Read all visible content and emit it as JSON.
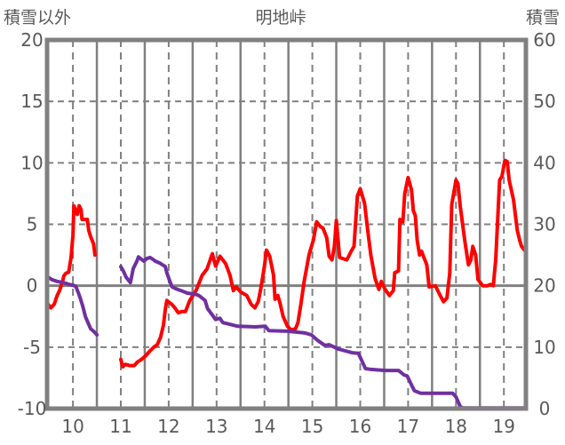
{
  "chart_data": {
    "type": "line",
    "title": "明地峠",
    "ylabel_left": "積雪以外",
    "ylabel_right": "積雪",
    "xlim": [
      9.46,
      19.46
    ],
    "ylim_left": [
      -10,
      20
    ],
    "ylim_right": [
      0,
      60
    ],
    "x_ticks": [
      "10",
      "11",
      "12",
      "13",
      "14",
      "15",
      "16",
      "17",
      "18",
      "19"
    ],
    "y_ticks_left": [
      "20",
      "15",
      "10",
      "5",
      "0",
      "-5",
      "-10"
    ],
    "y_ticks_right": [
      "60",
      "50",
      "40",
      "30",
      "20",
      "10",
      "0"
    ],
    "grid": true,
    "colors": {
      "temperature": "#ff0000",
      "snow": "#7030a0",
      "axis": "#808080",
      "text": "#595959"
    },
    "series": [
      {
        "name": "積雪以外",
        "axis": "left",
        "color": "#ff0000",
        "points": [
          [
            9.48,
            -1.5
          ],
          [
            9.54,
            -1.8
          ],
          [
            9.61,
            -1.5
          ],
          [
            9.67,
            -0.8
          ],
          [
            9.72,
            -0.4
          ],
          [
            9.78,
            0.3
          ],
          [
            9.81,
            0.8
          ],
          [
            9.85,
            1.0
          ],
          [
            9.91,
            1.1
          ],
          [
            9.96,
            2.3
          ],
          [
            10.0,
            4.1
          ],
          [
            10.02,
            6.5
          ],
          [
            10.06,
            6.1
          ],
          [
            10.09,
            5.8
          ],
          [
            10.13,
            6.5
          ],
          [
            10.17,
            6.2
          ],
          [
            10.19,
            5.4
          ],
          [
            10.3,
            5.4
          ],
          [
            10.33,
            4.5
          ],
          [
            10.37,
            4.0
          ],
          [
            10.43,
            3.4
          ],
          [
            10.46,
            2.5
          ],
          null,
          [
            11.0,
            -6.0
          ],
          [
            11.04,
            -6.6
          ],
          [
            11.09,
            -6.4
          ],
          [
            11.19,
            -6.5
          ],
          [
            11.28,
            -6.5
          ],
          [
            11.35,
            -6.2
          ],
          [
            11.43,
            -6.0
          ],
          [
            11.52,
            -5.7
          ],
          [
            11.61,
            -5.3
          ],
          [
            11.69,
            -5.0
          ],
          [
            11.76,
            -4.8
          ],
          [
            11.83,
            -4.2
          ],
          [
            11.89,
            -3.2
          ],
          [
            11.93,
            -1.9
          ],
          [
            11.96,
            -1.2
          ],
          [
            12.06,
            -1.5
          ],
          [
            12.13,
            -1.8
          ],
          [
            12.2,
            -2.2
          ],
          [
            12.28,
            -2.1
          ],
          [
            12.35,
            -2.1
          ],
          [
            12.44,
            -1.2
          ],
          [
            12.57,
            -0.4
          ],
          [
            12.7,
            0.85
          ],
          [
            12.8,
            1.36
          ],
          [
            12.91,
            2.6
          ],
          [
            12.98,
            1.6
          ],
          [
            13.07,
            2.4
          ],
          [
            13.19,
            1.8
          ],
          [
            13.28,
            0.85
          ],
          [
            13.35,
            -0.4
          ],
          [
            13.41,
            -0.1
          ],
          [
            13.5,
            -0.5
          ],
          [
            13.63,
            -0.8
          ],
          [
            13.72,
            -1.5
          ],
          [
            13.8,
            -1.8
          ],
          [
            13.87,
            -1.3
          ],
          [
            13.93,
            -0.1
          ],
          [
            14.0,
            1.6
          ],
          [
            14.04,
            2.9
          ],
          [
            14.11,
            2.4
          ],
          [
            14.19,
            0.85
          ],
          [
            14.22,
            -1.1
          ],
          [
            14.28,
            -0.8
          ],
          [
            14.33,
            -1.5
          ],
          [
            14.39,
            -2.5
          ],
          [
            14.48,
            -3.3
          ],
          [
            14.56,
            -3.6
          ],
          [
            14.65,
            -3.5
          ],
          [
            14.7,
            -3.0
          ],
          [
            14.76,
            -1.5
          ],
          [
            14.83,
            0.35
          ],
          [
            14.93,
            2.5
          ],
          [
            15.02,
            3.7
          ],
          [
            15.09,
            5.2
          ],
          [
            15.17,
            4.8
          ],
          [
            15.22,
            4.7
          ],
          [
            15.3,
            3.9
          ],
          [
            15.35,
            2.4
          ],
          [
            15.41,
            2.1
          ],
          [
            15.46,
            3.2
          ],
          [
            15.5,
            5.3
          ],
          [
            15.57,
            2.3
          ],
          [
            15.72,
            2.1
          ],
          [
            15.81,
            2.8
          ],
          [
            15.87,
            3.2
          ],
          [
            15.94,
            7.3
          ],
          [
            16.0,
            7.9
          ],
          [
            16.09,
            6.7
          ],
          [
            16.15,
            4.7
          ],
          [
            16.22,
            2.5
          ],
          [
            16.31,
            0.6
          ],
          [
            16.39,
            -0.3
          ],
          [
            16.44,
            0.35
          ],
          [
            16.52,
            -0.3
          ],
          [
            16.61,
            -0.8
          ],
          [
            16.69,
            -0.4
          ],
          [
            16.72,
            1.05
          ],
          [
            16.8,
            1.2
          ],
          [
            16.83,
            5.4
          ],
          [
            16.89,
            5.2
          ],
          [
            16.93,
            7.5
          ],
          [
            17.0,
            8.8
          ],
          [
            17.07,
            7.8
          ],
          [
            17.11,
            6.1
          ],
          [
            17.15,
            5.7
          ],
          [
            17.19,
            3.7
          ],
          [
            17.24,
            2.5
          ],
          [
            17.28,
            2.8
          ],
          [
            17.39,
            1.7
          ],
          [
            17.44,
            -0.1
          ],
          [
            17.57,
            0.0
          ],
          [
            17.67,
            -0.8
          ],
          [
            17.74,
            -1.3
          ],
          [
            17.81,
            -1.0
          ],
          [
            17.87,
            1.05
          ],
          [
            17.91,
            6.6
          ],
          [
            18.0,
            8.6
          ],
          [
            18.04,
            8.3
          ],
          [
            18.09,
            6.4
          ],
          [
            18.19,
            3.5
          ],
          [
            18.26,
            1.7
          ],
          [
            18.31,
            2.1
          ],
          [
            18.35,
            3.2
          ],
          [
            18.41,
            2.5
          ],
          [
            18.46,
            0.5
          ],
          [
            18.56,
            0.0
          ],
          [
            18.65,
            0.0
          ],
          [
            18.72,
            0.1
          ],
          [
            18.78,
            0.0
          ],
          [
            18.83,
            2.1
          ],
          [
            18.91,
            8.6
          ],
          [
            18.96,
            8.9
          ],
          [
            19.02,
            10.2
          ],
          [
            19.07,
            10.1
          ],
          [
            19.11,
            8.6
          ],
          [
            19.2,
            7.0
          ],
          [
            19.28,
            4.5
          ],
          [
            19.33,
            3.7
          ],
          [
            19.37,
            3.2
          ],
          [
            19.43,
            2.9
          ]
        ]
      },
      {
        "name": "積雪",
        "axis": "right",
        "color": "#7030a0",
        "points": [
          [
            9.48,
            21.4
          ],
          [
            9.56,
            21.0
          ],
          [
            9.67,
            20.7
          ],
          [
            9.8,
            20.5
          ],
          [
            9.93,
            20.2
          ],
          [
            10.0,
            20.1
          ],
          [
            10.06,
            19.9
          ],
          [
            10.13,
            18.5
          ],
          [
            10.2,
            16.8
          ],
          [
            10.26,
            15.0
          ],
          [
            10.33,
            13.7
          ],
          [
            10.37,
            13.0
          ],
          [
            10.43,
            12.6
          ],
          [
            10.5,
            12.0
          ],
          null,
          [
            11.0,
            23.1
          ],
          [
            11.06,
            22.3
          ],
          [
            11.11,
            21.4
          ],
          [
            11.2,
            20.5
          ],
          [
            11.26,
            22.8
          ],
          [
            11.33,
            23.9
          ],
          [
            11.37,
            24.7
          ],
          [
            11.43,
            24.3
          ],
          [
            11.48,
            24.0
          ],
          [
            11.54,
            24.4
          ],
          [
            11.61,
            24.6
          ],
          [
            11.67,
            24.3
          ],
          [
            11.72,
            24.0
          ],
          [
            11.81,
            23.7
          ],
          [
            11.93,
            23.1
          ],
          [
            11.96,
            22.1
          ],
          [
            12.02,
            20.8
          ],
          [
            12.07,
            19.8
          ],
          [
            12.15,
            19.5
          ],
          [
            12.26,
            19.2
          ],
          [
            12.39,
            18.8
          ],
          [
            12.56,
            18.6
          ],
          [
            12.63,
            18.4
          ],
          [
            12.76,
            17.6
          ],
          [
            12.81,
            16.3
          ],
          [
            12.98,
            14.5
          ],
          [
            13.07,
            14.7
          ],
          [
            13.13,
            14.0
          ],
          [
            13.44,
            13.4
          ],
          [
            13.81,
            13.3
          ],
          [
            14.02,
            13.4
          ],
          [
            14.09,
            12.7
          ],
          [
            14.48,
            12.6
          ],
          [
            14.85,
            12.3
          ],
          [
            14.98,
            12.0
          ],
          [
            15.11,
            11.1
          ],
          [
            15.26,
            10.3
          ],
          [
            15.35,
            10.4
          ],
          [
            15.54,
            9.7
          ],
          [
            15.83,
            9.1
          ],
          [
            15.96,
            9.0
          ],
          [
            16.11,
            6.5
          ],
          [
            16.2,
            6.4
          ],
          [
            16.52,
            6.2
          ],
          [
            16.8,
            6.2
          ],
          [
            16.91,
            5.5
          ],
          [
            16.98,
            5.3
          ],
          [
            17.13,
            2.9
          ],
          [
            17.26,
            2.5
          ],
          [
            17.93,
            2.5
          ],
          [
            18.0,
            1.9
          ],
          [
            18.09,
            0.3
          ],
          [
            18.15,
            0.1
          ],
          [
            19.43,
            0.1
          ]
        ]
      }
    ]
  }
}
